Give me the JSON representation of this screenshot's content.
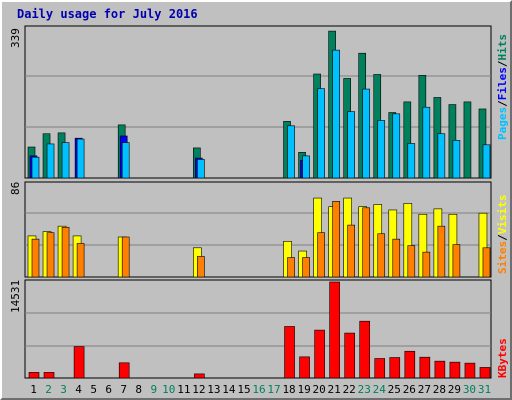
{
  "title": "Daily usage for July 2016",
  "colors": {
    "hits": "#00805C",
    "files": "#0000FF",
    "pages": "#00C0FF",
    "visits": "#FFFF00",
    "sites": "#FF8000",
    "kbytes": "#FF0000",
    "weekend_day": "#00805C",
    "weekday": "#000000",
    "panel_bg": "#C0C0C0",
    "grid": "#808080"
  },
  "legend": {
    "pages": "Pages",
    "files": "Files",
    "hits": "Hits",
    "sep": "/",
    "sites": "Sites",
    "visits": "Visits",
    "kbytes": "KBytes"
  },
  "axis": {
    "max_hits": "339",
    "max_visits": "86",
    "max_kbytes": "14531"
  },
  "chart_data": {
    "type": "bar",
    "title": "Daily usage for July 2016",
    "categories": [
      "1",
      "2",
      "3",
      "4",
      "5",
      "6",
      "7",
      "8",
      "9",
      "10",
      "11",
      "12",
      "13",
      "14",
      "15",
      "16",
      "17",
      "18",
      "19",
      "20",
      "21",
      "22",
      "23",
      "24",
      "25",
      "26",
      "27",
      "28",
      "29",
      "30",
      "31"
    ],
    "weekend_days": [
      "2",
      "3",
      "9",
      "10",
      "16",
      "17",
      "23",
      "24",
      "30",
      "31"
    ],
    "panels": [
      {
        "name": "hits-files-pages",
        "ymax": 339,
        "series": [
          {
            "name": "Hits",
            "values": [
              70,
              100,
              102,
              0,
              0,
              0,
              120,
              0,
              0,
              0,
              0,
              68,
              0,
              0,
              0,
              0,
              0,
              128,
              58,
              235,
              332,
              225,
              282,
              234,
              148,
              172,
              232,
              182,
              166,
              172,
              156
            ]
          },
          {
            "name": "Files",
            "values": [
              50,
              0,
              0,
              90,
              0,
              0,
              95,
              0,
              0,
              0,
              0,
              45,
              0,
              0,
              0,
              0,
              0,
              0,
              40,
              0,
              0,
              0,
              0,
              0,
              0,
              0,
              0,
              0,
              0,
              0,
              0
            ]
          },
          {
            "name": "Pages",
            "values": [
              47,
              77,
              80,
              88,
              0,
              0,
              80,
              0,
              0,
              0,
              0,
              42,
              0,
              0,
              0,
              0,
              0,
              118,
              50,
              202,
              289,
              150,
              201,
              130,
              145,
              78,
              160,
              100,
              85,
              0,
              75
            ]
          }
        ]
      },
      {
        "name": "visits-sites",
        "ymax": 86,
        "series": [
          {
            "name": "Visits",
            "values": [
              38,
              42,
              47,
              38,
              0,
              0,
              37,
              0,
              0,
              0,
              0,
              27,
              0,
              0,
              0,
              0,
              0,
              33,
              24,
              73,
              65,
              73,
              65,
              67,
              62,
              68,
              58,
              63,
              58,
              0,
              59
            ]
          },
          {
            "name": "Sites",
            "values": [
              35,
              41,
              46,
              31,
              0,
              0,
              37,
              0,
              0,
              0,
              0,
              19,
              0,
              0,
              0,
              0,
              0,
              18,
              18,
              41,
              70,
              48,
              64,
              40,
              35,
              29,
              23,
              47,
              30,
              0,
              27
            ]
          }
        ]
      },
      {
        "name": "kbytes",
        "ymax": 14531,
        "series": [
          {
            "name": "KBytes",
            "values": [
              850,
              850,
              0,
              4750,
              0,
              0,
              2300,
              0,
              0,
              0,
              0,
              620,
              0,
              0,
              0,
              0,
              0,
              7800,
              3200,
              7250,
              14531,
              6800,
              8600,
              2950,
              3100,
              4050,
              3150,
              2550,
              2400,
              2250,
              1600
            ]
          }
        ]
      }
    ]
  }
}
